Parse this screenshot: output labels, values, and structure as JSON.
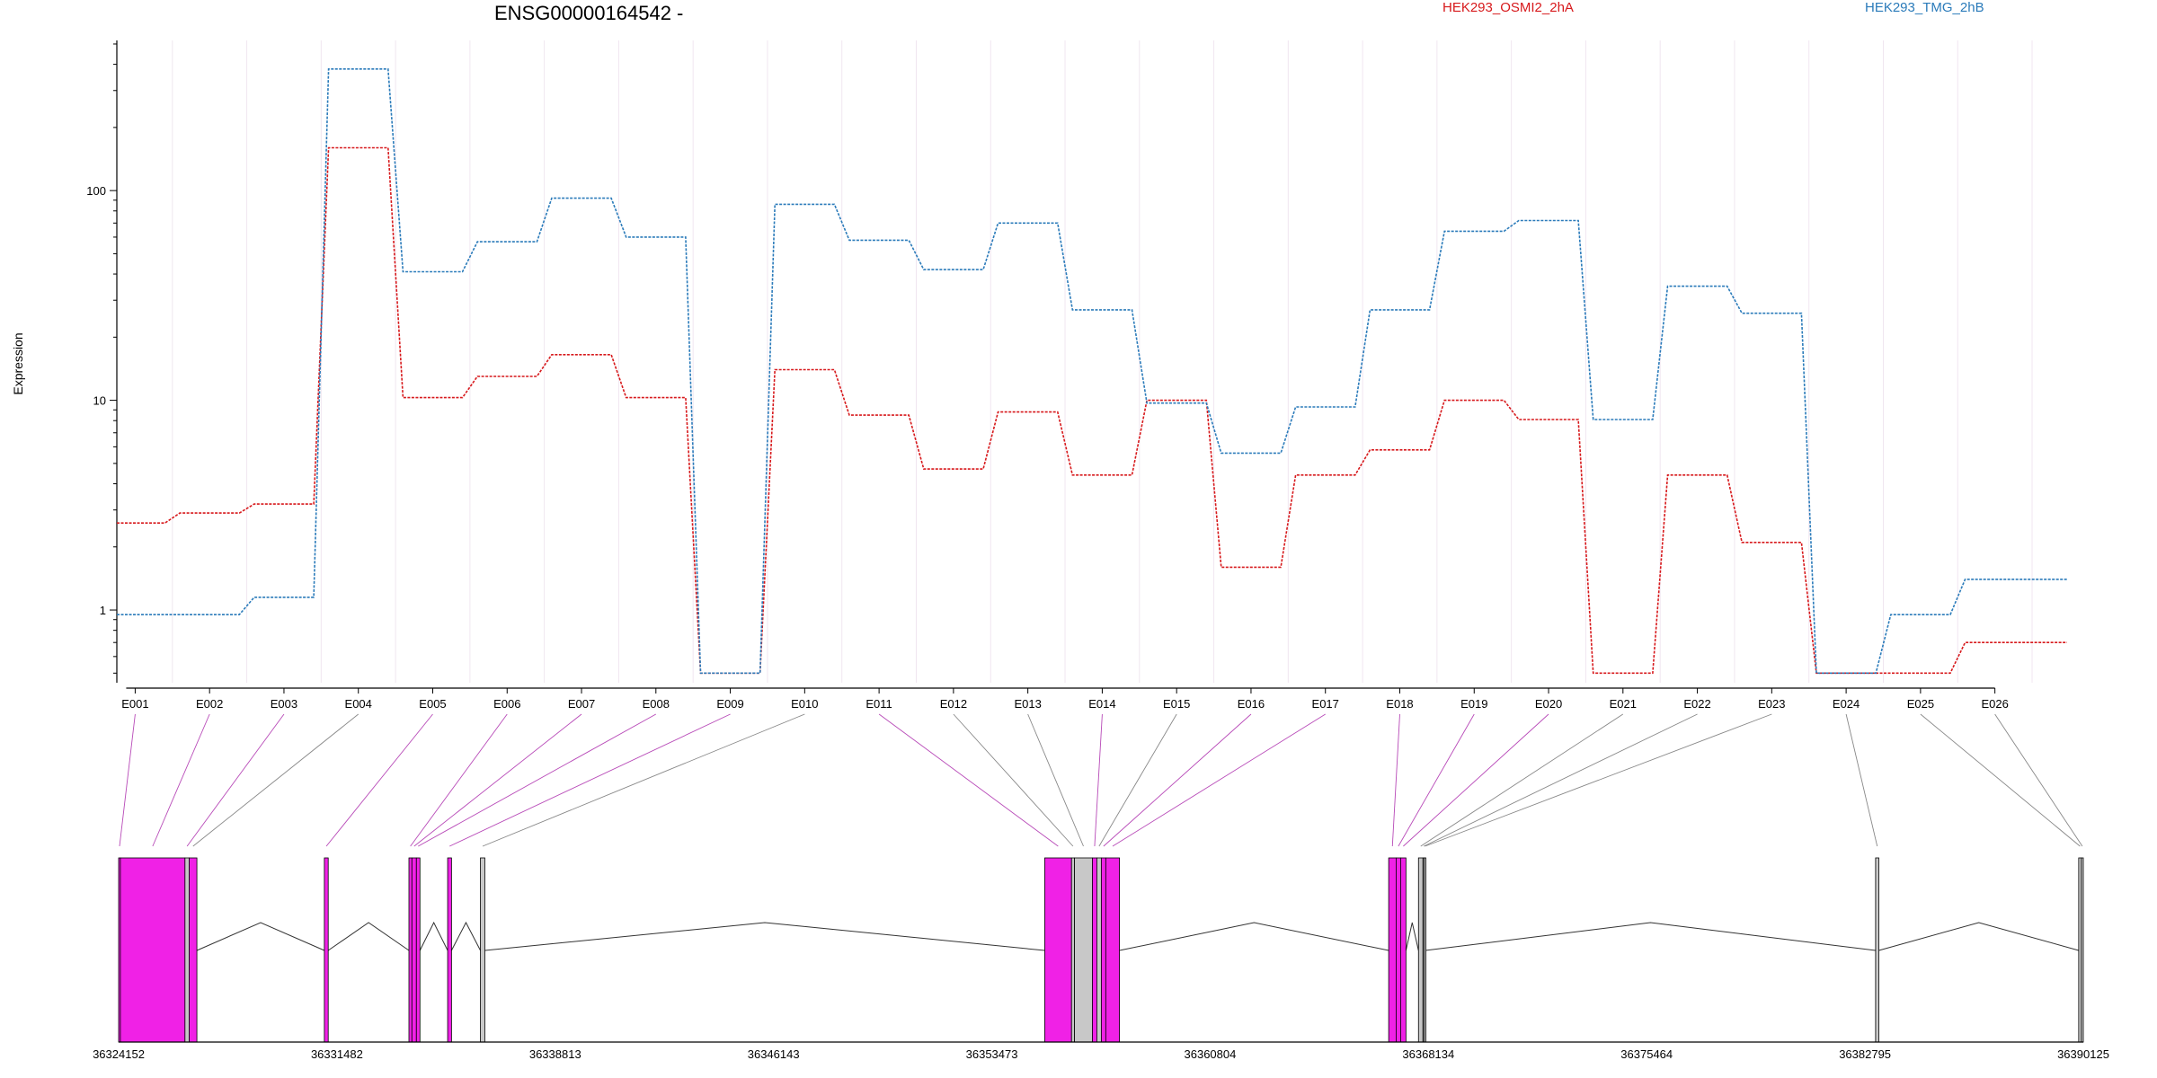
{
  "chart_data": {
    "type": "line",
    "title": "ENSG00000164542 -",
    "ylabel": "Expression",
    "yscale": "log",
    "ylim": [
      0.45,
      520
    ],
    "y_ticks": [
      1,
      10,
      100
    ],
    "y_tick_labels": [
      "1",
      "10",
      "100"
    ],
    "categories": [
      "E001",
      "E002",
      "E003",
      "E004",
      "E005",
      "E006",
      "E007",
      "E008",
      "E009",
      "E010",
      "E011",
      "E012",
      "E013",
      "E014",
      "E015",
      "E016",
      "E017",
      "E018",
      "E019",
      "E020",
      "E021",
      "E022",
      "E023",
      "E024",
      "E025",
      "E026"
    ],
    "series": [
      {
        "name": "HEK293_OSMI2_2hA",
        "color": "#d7191c",
        "values": [
          2.6,
          2.9,
          3.2,
          160,
          10.3,
          13,
          16.5,
          10.3,
          0.5,
          14,
          8.5,
          4.7,
          8.8,
          4.4,
          10,
          1.6,
          4.4,
          5.8,
          10,
          8.1,
          0.5,
          4.4,
          2.1,
          0.5,
          0.5,
          0.7
        ]
      },
      {
        "name": "HEK293_TMG_2hB",
        "color": "#2b7bba",
        "values": [
          0.95,
          0.95,
          1.15,
          380,
          41,
          57,
          92,
          60,
          0.5,
          86,
          58,
          42,
          70,
          27,
          9.7,
          5.6,
          9.3,
          27,
          64,
          72,
          8.1,
          35,
          26,
          0.5,
          0.95,
          1.4
        ]
      }
    ],
    "gene_model": {
      "coordinate_labels": [
        "36324152",
        "36331482",
        "36338813",
        "36346143",
        "36353473",
        "36360804",
        "36368134",
        "36375464",
        "36382795",
        "36390125"
      ],
      "start": 36324152,
      "end": 36390125,
      "highlight_color": "#f021e6",
      "plain_color": "#c8c8c8",
      "exons": [
        {
          "id": "E001",
          "start": 36324152,
          "end": 36324210,
          "highlight": true
        },
        {
          "id": "E002",
          "start": 36324210,
          "end": 36326380,
          "highlight": true
        },
        {
          "id": "E003",
          "start": 36326380,
          "end": 36326520,
          "highlight": false
        },
        {
          "id": "E004",
          "start": 36326520,
          "end": 36326780,
          "highlight": true
        },
        {
          "id": "E005",
          "start": 36331060,
          "end": 36331190,
          "highlight": true
        },
        {
          "id": "E006",
          "start": 36333900,
          "end": 36334000,
          "highlight": true
        },
        {
          "id": "E007",
          "start": 36334000,
          "end": 36334150,
          "highlight": true
        },
        {
          "id": "E008",
          "start": 36334150,
          "end": 36334270,
          "highlight": true
        },
        {
          "id": "E009",
          "start": 36335200,
          "end": 36335330,
          "highlight": true
        },
        {
          "id": "E010",
          "start": 36336300,
          "end": 36336450,
          "highlight": false
        },
        {
          "id": "E011",
          "start": 36355250,
          "end": 36356150,
          "highlight": true
        },
        {
          "id": "E012",
          "start": 36356150,
          "end": 36356250,
          "highlight": false
        },
        {
          "id": "E013",
          "start": 36356250,
          "end": 36356850,
          "highlight": false
        },
        {
          "id": "E014",
          "start": 36356850,
          "end": 36357000,
          "highlight": true
        },
        {
          "id": "E015",
          "start": 36357000,
          "end": 36357150,
          "highlight": false
        },
        {
          "id": "E016",
          "start": 36357150,
          "end": 36357300,
          "highlight": true
        },
        {
          "id": "E017",
          "start": 36357300,
          "end": 36357760,
          "highlight": true
        },
        {
          "id": "E018",
          "start": 36366800,
          "end": 36367050,
          "highlight": true
        },
        {
          "id": "E019",
          "start": 36367050,
          "end": 36367200,
          "highlight": true
        },
        {
          "id": "E020",
          "start": 36367200,
          "end": 36367380,
          "highlight": true
        },
        {
          "id": "E021",
          "start": 36367800,
          "end": 36367950,
          "highlight": false
        },
        {
          "id": "E022",
          "start": 36367950,
          "end": 36367990,
          "highlight": false
        },
        {
          "id": "E023",
          "start": 36367990,
          "end": 36368030,
          "highlight": false
        },
        {
          "id": "E024",
          "start": 36383150,
          "end": 36383260,
          "highlight": false
        },
        {
          "id": "E025",
          "start": 36389970,
          "end": 36390060,
          "highlight": false
        },
        {
          "id": "E026",
          "start": 36390060,
          "end": 36390125,
          "highlight": false
        }
      ],
      "connector_highlight": [
        true,
        true,
        true,
        false,
        true,
        true,
        true,
        true,
        true,
        false,
        true,
        false,
        false,
        true,
        false,
        true,
        true,
        true,
        true,
        true,
        false,
        false,
        false,
        false,
        false,
        false
      ]
    }
  }
}
